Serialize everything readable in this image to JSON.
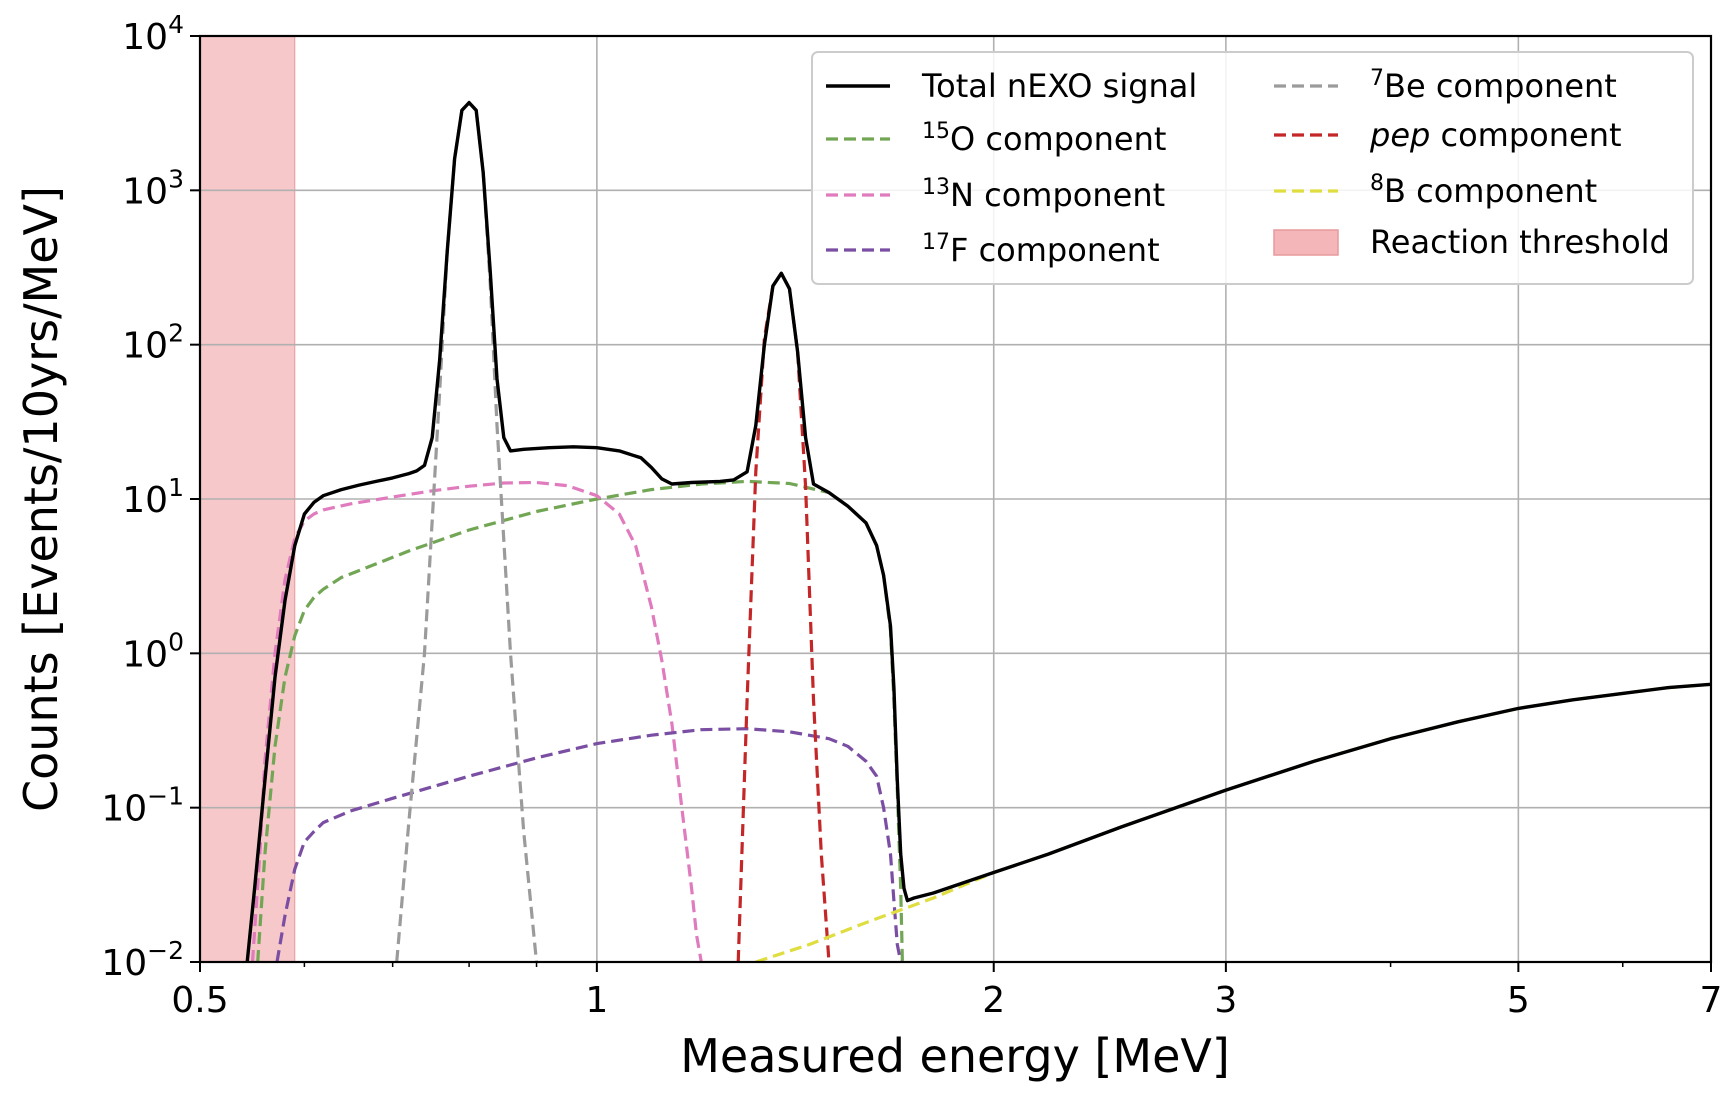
{
  "chart_data": {
    "type": "line",
    "title": "",
    "xlabel": "Measured energy [MeV]",
    "ylabel": "Counts [Events/10yrs/MeV]",
    "x_scale": "log",
    "y_scale": "log",
    "xlim": [
      0.5,
      7
    ],
    "ylim": [
      0.01,
      10000
    ],
    "grid": true,
    "legend_position": "top-right",
    "legend_columns": 2,
    "x_ticks": [
      {
        "value": 0.5,
        "label": "0.5"
      },
      {
        "value": 1,
        "label": "1"
      },
      {
        "value": 2,
        "label": "2"
      },
      {
        "value": 3,
        "label": "3"
      },
      {
        "value": 5,
        "label": "5"
      },
      {
        "value": 7,
        "label": "7"
      }
    ],
    "y_ticks": [
      {
        "value": 0.01,
        "base": "10",
        "exp": "−2"
      },
      {
        "value": 0.1,
        "base": "10",
        "exp": "−1"
      },
      {
        "value": 1,
        "base": "10",
        "exp": "0"
      },
      {
        "value": 10,
        "base": "10",
        "exp": "1"
      },
      {
        "value": 100,
        "base": "10",
        "exp": "2"
      },
      {
        "value": 1000,
        "base": "10",
        "exp": "3"
      },
      {
        "value": 10000,
        "base": "10",
        "exp": "4"
      }
    ],
    "threshold": {
      "label": "Reaction threshold",
      "x_range": [
        0.5,
        0.59
      ],
      "color": "#f4b6b8"
    },
    "series": [
      {
        "name": "Total nEXO signal",
        "label_pre": "",
        "label_sup": "",
        "label_main": "Total nEXO signal",
        "label_italic": "",
        "label_post": "",
        "color": "#000000",
        "style": "solid",
        "x": [
          0.543,
          0.55,
          0.56,
          0.57,
          0.58,
          0.59,
          0.6,
          0.61,
          0.62,
          0.64,
          0.66,
          0.68,
          0.7,
          0.72,
          0.73,
          0.74,
          0.75,
          0.76,
          0.77,
          0.78,
          0.79,
          0.8,
          0.81,
          0.82,
          0.83,
          0.84,
          0.85,
          0.86,
          0.88,
          0.92,
          0.96,
          1.0,
          1.04,
          1.08,
          1.1,
          1.12,
          1.14,
          1.18,
          1.24,
          1.27,
          1.3,
          1.32,
          1.34,
          1.36,
          1.38,
          1.4,
          1.42,
          1.44,
          1.46,
          1.5,
          1.55,
          1.6,
          1.63,
          1.65,
          1.67,
          1.68,
          1.69,
          1.7,
          1.71,
          1.72,
          1.74,
          1.8,
          2.0,
          2.2,
          2.5,
          3.0,
          3.5,
          4.0,
          4.5,
          5.0,
          5.5,
          6.0,
          6.5,
          7.0
        ],
        "y": [
          0.01,
          0.03,
          0.15,
          0.7,
          2.2,
          5.0,
          8.0,
          9.5,
          10.5,
          11.5,
          12.3,
          13.0,
          13.7,
          14.6,
          15.2,
          16.5,
          25,
          80,
          400,
          1600,
          3300,
          3700,
          3300,
          1300,
          300,
          60,
          25,
          20.5,
          21,
          21.5,
          21.8,
          21.5,
          20.5,
          18.5,
          16,
          13.5,
          12.5,
          12.8,
          13.0,
          13.3,
          15,
          30,
          100,
          240,
          290,
          230,
          90,
          25,
          12.5,
          11,
          9.0,
          7.0,
          5.0,
          3.2,
          1.5,
          0.6,
          0.15,
          0.05,
          0.03,
          0.025,
          0.026,
          0.028,
          0.038,
          0.05,
          0.075,
          0.13,
          0.2,
          0.28,
          0.36,
          0.44,
          0.5,
          0.55,
          0.6,
          0.63
        ]
      },
      {
        "name": "15O component",
        "label_pre": "",
        "label_sup": "15",
        "label_main": "O component",
        "label_italic": "",
        "label_post": "",
        "color": "#72a655",
        "style": "dashed",
        "x": [
          0.553,
          0.56,
          0.57,
          0.58,
          0.59,
          0.6,
          0.61,
          0.62,
          0.64,
          0.68,
          0.72,
          0.8,
          0.9,
          1.0,
          1.1,
          1.2,
          1.3,
          1.4,
          1.5,
          1.55,
          1.6,
          1.63,
          1.65,
          1.67,
          1.68,
          1.69,
          1.7,
          1.705
        ],
        "y": [
          0.01,
          0.05,
          0.25,
          0.7,
          1.3,
          1.9,
          2.3,
          2.6,
          3.1,
          3.8,
          4.6,
          6.3,
          8.3,
          10.0,
          11.5,
          12.5,
          13.0,
          12.6,
          11.0,
          9.0,
          7.0,
          5.0,
          3.2,
          1.4,
          0.5,
          0.13,
          0.03,
          0.01
        ]
      },
      {
        "name": "13N component",
        "label_pre": "",
        "label_sup": "13",
        "label_main": "N component",
        "label_italic": "",
        "label_post": "",
        "color": "#e07bbd",
        "style": "dashed",
        "x": [
          0.548,
          0.555,
          0.56,
          0.57,
          0.58,
          0.59,
          0.6,
          0.61,
          0.62,
          0.65,
          0.7,
          0.75,
          0.8,
          0.85,
          0.9,
          0.95,
          1.0,
          1.04,
          1.07,
          1.1,
          1.12,
          1.14,
          1.16,
          1.18,
          1.19,
          1.2
        ],
        "y": [
          0.01,
          0.05,
          0.2,
          1.0,
          3.0,
          5.6,
          7.2,
          8.0,
          8.5,
          9.3,
          10.3,
          11.3,
          12.1,
          12.7,
          12.8,
          12.2,
          10.5,
          8.0,
          5.0,
          2.0,
          0.9,
          0.35,
          0.1,
          0.03,
          0.015,
          0.01
        ]
      },
      {
        "name": "17F component",
        "label_pre": "",
        "label_sup": "17",
        "label_main": "F component",
        "label_italic": "",
        "label_post": "",
        "color": "#7a4ea2",
        "style": "dashed",
        "x": [
          0.572,
          0.58,
          0.59,
          0.6,
          0.61,
          0.62,
          0.65,
          0.7,
          0.8,
          0.9,
          1.0,
          1.1,
          1.2,
          1.3,
          1.4,
          1.5,
          1.55,
          1.6,
          1.63,
          1.65,
          1.67,
          1.68,
          1.69,
          1.7
        ],
        "y": [
          0.01,
          0.02,
          0.04,
          0.06,
          0.07,
          0.08,
          0.095,
          0.115,
          0.16,
          0.21,
          0.26,
          0.295,
          0.32,
          0.325,
          0.31,
          0.28,
          0.25,
          0.2,
          0.16,
          0.1,
          0.05,
          0.025,
          0.013,
          0.01
        ]
      },
      {
        "name": "7Be component",
        "label_pre": "",
        "label_sup": "7",
        "label_main": "Be component",
        "label_italic": "",
        "label_post": "",
        "color": "#9b9b9b",
        "style": "dashed",
        "x": [
          0.705,
          0.72,
          0.74,
          0.76,
          0.77,
          0.78,
          0.79,
          0.8,
          0.81,
          0.82,
          0.83,
          0.84,
          0.86,
          0.88,
          0.9
        ],
        "y": [
          0.01,
          0.08,
          1.0,
          50,
          400,
          1600,
          3300,
          3700,
          3300,
          1300,
          250,
          30,
          1.0,
          0.07,
          0.01
        ]
      },
      {
        "name": "pep component",
        "label_pre": "",
        "label_sup": "",
        "label_main": "",
        "label_italic": "pep",
        "label_post": " component",
        "color": "#c32727",
        "style": "dashed",
        "x": [
          1.28,
          1.3,
          1.32,
          1.34,
          1.36,
          1.38,
          1.4,
          1.42,
          1.44,
          1.46,
          1.48,
          1.5
        ],
        "y": [
          0.01,
          0.5,
          15,
          110,
          240,
          290,
          230,
          90,
          12,
          0.5,
          0.05,
          0.01
        ]
      },
      {
        "name": "8B component",
        "label_pre": "",
        "label_sup": "8",
        "label_main": "B component",
        "label_italic": "",
        "label_post": "",
        "color": "#dfdd3f",
        "style": "dashed",
        "x": [
          1.32,
          1.45,
          1.6,
          1.8,
          2.0,
          2.2,
          2.5,
          3.0,
          3.5,
          4.0,
          4.5,
          5.0,
          5.5,
          6.0,
          6.5,
          7.0
        ],
        "y": [
          0.01,
          0.013,
          0.018,
          0.026,
          0.038,
          0.05,
          0.075,
          0.13,
          0.2,
          0.28,
          0.36,
          0.44,
          0.5,
          0.55,
          0.6,
          0.63
        ]
      }
    ]
  }
}
